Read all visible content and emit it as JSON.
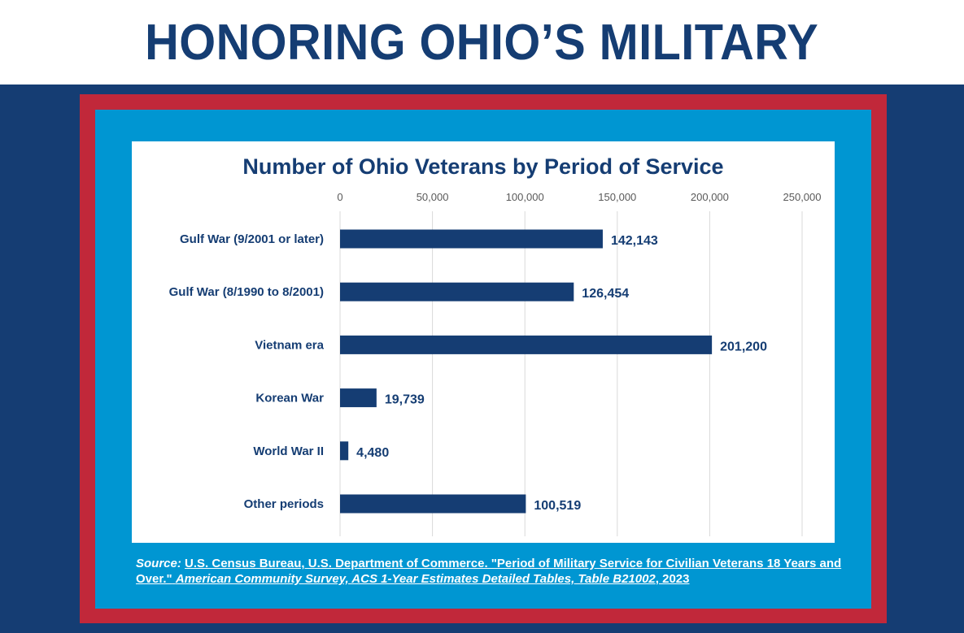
{
  "header": {
    "title": "HONORING OHIO’S MILITARY"
  },
  "chart_data": {
    "type": "bar",
    "orientation": "horizontal",
    "title": "Number of Ohio Veterans by Period of Service",
    "categories": [
      "Gulf War (9/2001 or later)",
      "Gulf War (8/1990 to 8/2001)",
      "Vietnam era",
      "Korean War",
      "World War II",
      "Other periods"
    ],
    "values": [
      142143,
      126454,
      201200,
      19739,
      4480,
      100519
    ],
    "value_labels": [
      "142,143",
      "126,454",
      "201,200",
      "19,739",
      "4,480",
      "100,519"
    ],
    "xticks": [
      0,
      50000,
      100000,
      150000,
      200000,
      250000
    ],
    "xtick_labels": [
      "0",
      "50,000",
      "100,000",
      "150,000",
      "200,000",
      "250,000"
    ],
    "xlim": [
      0,
      250000
    ],
    "grid": true,
    "axis_position": "top",
    "bar_color": "#153d73"
  },
  "source": {
    "label": "Source:",
    "text_plain": "U.S. Census Bureau, U.S. Department of Commerce. \"Period of Military Service for Civilian Veterans 18 Years and Over.\"",
    "text_italic": "American Community Survey, ACS 1-Year Estimates Detailed Tables, Table B21002",
    "text_end": ", 2023"
  },
  "colors": {
    "navy": "#153d73",
    "red": "#c1283a",
    "blue": "#0096d2"
  }
}
